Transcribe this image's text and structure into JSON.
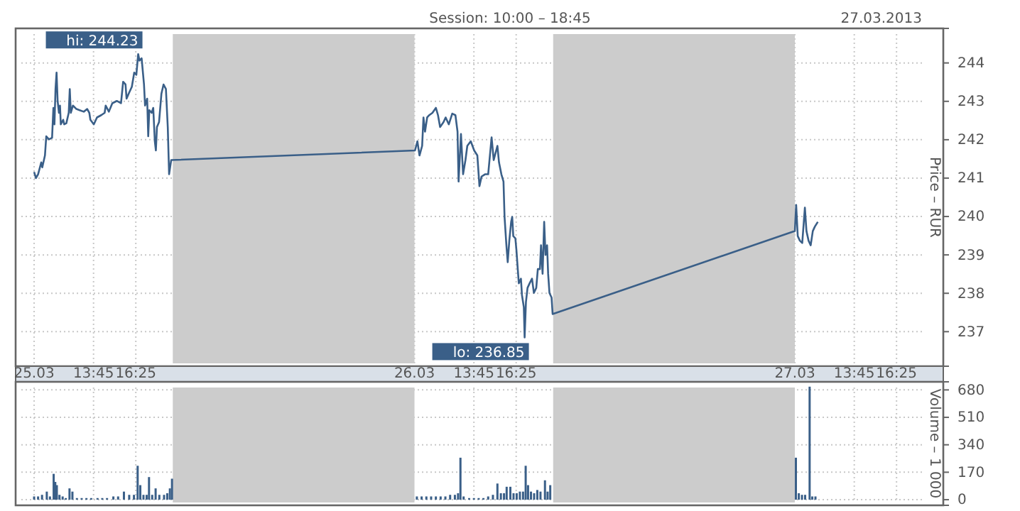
{
  "chart_data": [
    {
      "type": "line",
      "title": "Session: 10:00 – 18:45",
      "subtitle": "27.03.2013",
      "ylabel": "Price – RUR",
      "xlim": [
        "2013-03-25T08:50",
        "2013-03-27T19:22"
      ],
      "ylim": [
        236.1,
        244.9
      ],
      "xticks": [
        {
          "value": "2013-03-25T10:00",
          "label": "25.03"
        },
        {
          "value": "2013-03-25T13:45",
          "label": "13:45"
        },
        {
          "value": "2013-03-25T16:25",
          "label": "16:25"
        },
        {
          "value": "2013-03-26T10:00",
          "label": "26.03"
        },
        {
          "value": "2013-03-26T13:45",
          "label": "13:45"
        },
        {
          "value": "2013-03-26T16:25",
          "label": "16:25"
        },
        {
          "value": "2013-03-27T10:00",
          "label": "27.03"
        },
        {
          "value": "2013-03-27T13:45",
          "label": "13:45"
        },
        {
          "value": "2013-03-27T16:25",
          "label": "16:25"
        }
      ],
      "yticks": [
        237,
        238,
        239,
        240,
        241,
        242,
        243,
        244
      ],
      "grid": true,
      "marker": "none",
      "line_style": "solid",
      "bands": [
        {
          "axis": "x",
          "from": "2013-03-25T18:45",
          "to": "2013-03-26T10:00",
          "color": "#cccccc"
        },
        {
          "axis": "x",
          "from": "2013-03-26T18:45",
          "to": "2013-03-27T10:00",
          "color": "#cccccc"
        }
      ],
      "annotations": [
        {
          "text": "hi: 244.23",
          "x": "2013-03-25T16:34",
          "y": 244.23
        },
        {
          "text": "lo: 236.85",
          "x": "2013-03-26T16:57",
          "y": 236.85
        }
      ],
      "series": [
        {
          "color": "#3a5f88",
          "x": [
            "2013-03-25T10:00",
            "2013-03-25T10:07",
            "2013-03-25T10:15",
            "2013-03-25T10:27",
            "2013-03-25T10:31",
            "2013-03-25T10:41",
            "2013-03-25T10:46",
            "2013-03-25T10:56",
            "2013-03-25T11:08",
            "2013-03-25T11:13",
            "2013-03-25T11:17",
            "2013-03-25T11:21",
            "2013-03-25T11:25",
            "2013-03-25T11:29",
            "2013-03-25T11:34",
            "2013-03-25T11:38",
            "2013-03-25T11:41",
            "2013-03-25T11:50",
            "2013-03-25T11:54",
            "2013-03-25T12:02",
            "2013-03-25T12:11",
            "2013-03-25T12:15",
            "2013-03-25T12:19",
            "2013-03-25T12:27",
            "2013-03-25T12:40",
            "2013-03-25T12:52",
            "2013-03-25T13:08",
            "2013-03-25T13:21",
            "2013-03-25T13:29",
            "2013-03-25T13:33",
            "2013-03-25T13:46",
            "2013-03-25T13:58",
            "2013-03-25T14:14",
            "2013-03-25T14:27",
            "2013-03-25T14:31",
            "2013-03-25T14:43",
            "2013-03-25T14:56",
            "2013-03-25T15:13",
            "2013-03-25T15:29",
            "2013-03-25T15:37",
            "2013-03-25T15:46",
            "2013-03-25T15:50",
            "2013-03-25T15:58",
            "2013-03-25T16:10",
            "2013-03-25T16:19",
            "2013-03-25T16:27",
            "2013-03-25T16:34",
            "2013-03-25T16:39",
            "2013-03-25T16:47",
            "2013-03-25T16:56",
            "2013-03-25T17:00",
            "2013-03-25T17:08",
            "2013-03-25T17:12",
            "2013-03-25T17:16",
            "2013-03-25T17:25",
            "2013-03-25T17:31",
            "2013-03-25T17:37",
            "2013-03-25T17:41",
            "2013-03-25T17:45",
            "2013-03-25T17:53",
            "2013-03-25T18:02",
            "2013-03-25T18:10",
            "2013-03-25T18:19",
            "2013-03-25T18:26",
            "2013-03-25T18:31",
            "2013-03-25T18:39",
            "2013-03-26T10:02",
            "2013-03-26T10:11",
            "2013-03-26T10:19",
            "2013-03-26T10:29",
            "2013-03-26T10:34",
            "2013-03-26T10:40",
            "2013-03-26T10:48",
            "2013-03-26T10:56",
            "2013-03-26T11:08",
            "2013-03-26T11:21",
            "2013-03-26T11:29",
            "2013-03-26T11:37",
            "2013-03-26T11:50",
            "2013-03-26T11:58",
            "2013-03-26T12:10",
            "2013-03-26T12:23",
            "2013-03-26T12:35",
            "2013-03-26T12:43",
            "2013-03-26T12:47",
            "2013-03-26T12:56",
            "2013-03-26T13:04",
            "2013-03-26T13:13",
            "2013-03-26T13:20",
            "2013-03-26T13:33",
            "2013-03-26T13:46",
            "2013-03-26T13:58",
            "2013-03-26T14:06",
            "2013-03-26T14:14",
            "2013-03-26T14:27",
            "2013-03-26T14:39",
            "2013-03-26T14:52",
            "2013-03-26T15:00",
            "2013-03-26T15:14",
            "2013-03-26T15:20",
            "2013-03-26T15:29",
            "2013-03-26T15:37",
            "2013-03-26T15:41",
            "2013-03-26T15:48",
            "2013-03-26T15:53",
            "2013-03-26T15:59",
            "2013-03-26T16:06",
            "2013-03-26T16:10",
            "2013-03-26T16:14",
            "2013-03-26T16:22",
            "2013-03-26T16:26",
            "2013-03-26T16:31",
            "2013-03-26T16:35",
            "2013-03-26T16:43",
            "2013-03-26T16:47",
            "2013-03-26T16:54",
            "2013-03-26T16:57",
            "2013-03-26T17:02",
            "2013-03-26T17:08",
            "2013-03-26T17:16",
            "2013-03-26T17:25",
            "2013-03-26T17:32",
            "2013-03-26T17:41",
            "2013-03-26T17:47",
            "2013-03-26T17:55",
            "2013-03-26T17:59",
            "2013-03-26T18:05",
            "2013-03-26T18:11",
            "2013-03-26T18:16",
            "2013-03-26T18:22",
            "2013-03-26T18:26",
            "2013-03-26T18:31",
            "2013-03-26T18:39",
            "2013-03-26T18:43",
            "2013-03-27T10:00",
            "2013-03-27T10:05",
            "2013-03-27T10:11",
            "2013-03-27T10:19",
            "2013-03-27T10:28",
            "2013-03-27T10:38",
            "2013-03-27T10:44",
            "2013-03-27T10:52",
            "2013-03-27T11:00",
            "2013-03-27T11:08",
            "2013-03-27T11:16",
            "2013-03-27T11:27"
          ],
          "values": [
            241.16,
            241.0,
            241.1,
            241.41,
            241.28,
            241.59,
            242.09,
            242.01,
            242.05,
            242.83,
            242.4,
            243.32,
            243.75,
            243.01,
            242.7,
            242.89,
            242.4,
            242.52,
            242.4,
            242.43,
            242.7,
            243.32,
            242.7,
            242.89,
            242.8,
            242.77,
            242.73,
            242.8,
            242.7,
            242.52,
            242.4,
            242.58,
            242.64,
            242.7,
            242.89,
            242.73,
            242.95,
            243.01,
            242.95,
            243.51,
            243.44,
            243.07,
            243.2,
            243.38,
            243.75,
            243.69,
            244.23,
            244.06,
            244.12,
            243.44,
            242.89,
            243.07,
            242.09,
            242.77,
            242.7,
            242.83,
            241.96,
            241.72,
            242.33,
            242.46,
            243.2,
            243.44,
            243.32,
            242.33,
            241.1,
            241.47,
            241.72,
            241.96,
            241.59,
            241.84,
            242.58,
            242.21,
            242.58,
            242.64,
            242.7,
            242.83,
            242.64,
            242.33,
            242.46,
            242.58,
            242.4,
            242.68,
            242.64,
            242.21,
            240.91,
            242.15,
            241.1,
            241.47,
            241.84,
            241.96,
            241.72,
            241.59,
            240.79,
            241.04,
            241.1,
            241.1,
            242.06,
            241.47,
            241.84,
            241.41,
            241.1,
            240.91,
            239.99,
            239.25,
            238.81,
            239.37,
            239.86,
            239.99,
            239.49,
            239.43,
            239.12,
            238.63,
            238.26,
            238.38,
            237.95,
            237.64,
            236.85,
            237.77,
            238.14,
            238.26,
            238.38,
            238.01,
            238.14,
            238.63,
            238.63,
            239.25,
            238.51,
            239.86,
            239.0,
            239.25,
            238.51,
            238.01,
            237.89,
            237.46,
            239.62,
            240.3,
            239.49,
            239.37,
            239.31,
            240.23,
            239.62,
            239.37,
            239.25,
            239.62,
            239.74,
            239.86
          ]
        }
      ]
    },
    {
      "type": "bar",
      "ylabel": "Volume – 1 000",
      "xlim": [
        "2013-03-25T08:50",
        "2013-03-27T19:22"
      ],
      "ylim": [
        -35,
        730
      ],
      "yticks": [
        0,
        170,
        340,
        510,
        680
      ],
      "xticks": [
        {
          "value": "2013-03-25T10:00",
          "label": null
        },
        {
          "value": "2013-03-25T13:45",
          "label": null
        },
        {
          "value": "2013-03-25T16:25",
          "label": null
        },
        {
          "value": "2013-03-26T13:45",
          "label": null
        },
        {
          "value": "2013-03-26T16:25",
          "label": null
        },
        {
          "value": "2013-03-27T13:45",
          "label": null
        },
        {
          "value": "2013-03-27T16:25",
          "label": null
        }
      ],
      "tick_labels": "y",
      "grid": true,
      "bands": [
        {
          "axis": "x",
          "from": "2013-03-25T18:45",
          "to": "2013-03-26T10:00",
          "color": "#cccccc"
        },
        {
          "axis": "x",
          "from": "2013-03-26T18:45",
          "to": "2013-03-27T10:00",
          "color": "#cccccc"
        }
      ],
      "series": [
        {
          "color": "#3a5f88",
          "x": [
            "2013-03-25T10:00",
            "2013-03-25T10:15",
            "2013-03-25T10:30",
            "2013-03-25T10:48",
            "2013-03-25T11:00",
            "2013-03-25T11:14",
            "2013-03-25T11:20",
            "2013-03-25T11:26",
            "2013-03-25T11:36",
            "2013-03-25T11:48",
            "2013-03-25T12:00",
            "2013-03-25T12:14",
            "2013-03-25T12:25",
            "2013-03-25T12:42",
            "2013-03-25T13:00",
            "2013-03-25T13:18",
            "2013-03-25T13:36",
            "2013-03-25T14:00",
            "2013-03-25T14:18",
            "2013-03-25T14:36",
            "2013-03-25T15:00",
            "2013-03-25T15:18",
            "2013-03-25T15:40",
            "2013-03-25T16:00",
            "2013-03-25T16:18",
            "2013-03-25T16:32",
            "2013-03-25T16:42",
            "2013-03-25T16:54",
            "2013-03-25T17:06",
            "2013-03-25T17:15",
            "2013-03-25T17:27",
            "2013-03-25T17:40",
            "2013-03-25T17:54",
            "2013-03-25T18:12",
            "2013-03-25T18:24",
            "2013-03-25T18:34",
            "2013-03-25T18:42",
            "2013-03-26T10:09",
            "2013-03-26T10:27",
            "2013-03-26T10:45",
            "2013-03-26T11:03",
            "2013-03-26T11:21",
            "2013-03-26T11:39",
            "2013-03-26T11:57",
            "2013-03-26T12:15",
            "2013-03-26T12:33",
            "2013-03-26T12:45",
            "2013-03-26T12:54",
            "2013-03-26T13:06",
            "2013-03-26T13:27",
            "2013-03-26T13:45",
            "2013-03-26T14:03",
            "2013-03-26T14:21",
            "2013-03-26T14:39",
            "2013-03-26T14:57",
            "2013-03-26T15:14",
            "2013-03-26T15:27",
            "2013-03-26T15:39",
            "2013-03-26T15:49",
            "2013-03-26T16:03",
            "2013-03-26T16:15",
            "2013-03-26T16:27",
            "2013-03-26T16:39",
            "2013-03-26T16:51",
            "2013-03-26T17:01",
            "2013-03-26T17:10",
            "2013-03-26T17:21",
            "2013-03-26T17:33",
            "2013-03-26T17:45",
            "2013-03-26T17:57",
            "2013-03-26T18:14",
            "2013-03-26T18:24",
            "2013-03-26T18:34",
            "2013-03-27T10:04",
            "2013-03-27T10:15",
            "2013-03-27T10:27",
            "2013-03-27T10:39",
            "2013-03-27T10:56",
            "2013-03-27T11:06",
            "2013-03-27T11:18"
          ],
          "values": [
            20,
            20,
            30,
            50,
            20,
            160,
            110,
            90,
            30,
            20,
            10,
            70,
            50,
            10,
            10,
            10,
            10,
            10,
            10,
            10,
            20,
            20,
            50,
            30,
            30,
            210,
            90,
            30,
            30,
            140,
            30,
            70,
            30,
            30,
            40,
            70,
            130,
            20,
            20,
            20,
            20,
            20,
            20,
            20,
            30,
            30,
            40,
            260,
            20,
            10,
            10,
            10,
            10,
            20,
            30,
            100,
            40,
            40,
            80,
            80,
            40,
            40,
            50,
            50,
            210,
            90,
            50,
            40,
            60,
            50,
            120,
            50,
            90,
            260,
            40,
            30,
            30,
            700,
            20,
            20
          ]
        }
      ]
    }
  ]
}
